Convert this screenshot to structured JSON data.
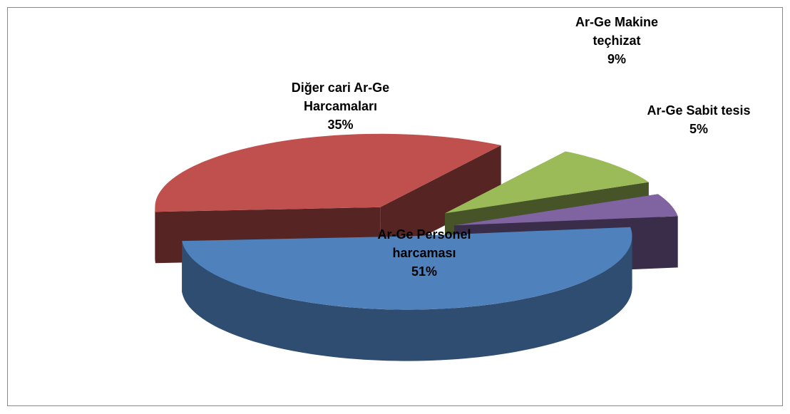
{
  "chart_data": {
    "type": "pie3d",
    "categories": [
      "Ar-Ge Personel harcaması",
      "Diğer cari Ar-Ge Harcamaları",
      "Ar-Ge Makine teçhizat",
      "Ar-Ge Sabit tesis"
    ],
    "values": [
      51,
      35,
      9,
      5
    ],
    "value_labels": [
      "51%",
      "35%",
      "9%",
      "5%"
    ],
    "colors": [
      "#4f81bd",
      "#c0504d",
      "#9bbb59",
      "#8064a2"
    ]
  }
}
